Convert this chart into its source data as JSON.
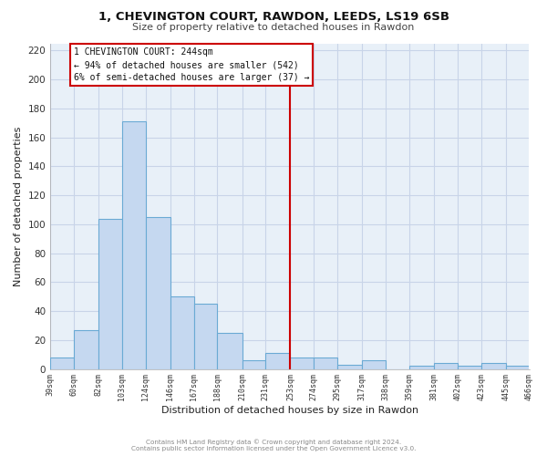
{
  "title": "1, CHEVINGTON COURT, RAWDON, LEEDS, LS19 6SB",
  "subtitle": "Size of property relative to detached houses in Rawdon",
  "xlabel": "Distribution of detached houses by size in Rawdon",
  "ylabel": "Number of detached properties",
  "bar_color": "#c5d8f0",
  "bar_edge_color": "#6aaad4",
  "axes_bg_color": "#e8f0f8",
  "vline_x": 253,
  "vline_color": "#cc0000",
  "bin_edges": [
    39,
    60,
    82,
    103,
    124,
    146,
    167,
    188,
    210,
    231,
    253,
    274,
    295,
    317,
    338,
    359,
    381,
    402,
    423,
    445,
    466
  ],
  "counts": [
    8,
    27,
    104,
    171,
    105,
    50,
    45,
    25,
    6,
    11,
    8,
    8,
    3,
    6,
    0,
    2,
    4,
    2,
    4,
    2
  ],
  "ylim": [
    0,
    225
  ],
  "yticks": [
    0,
    20,
    40,
    60,
    80,
    100,
    120,
    140,
    160,
    180,
    200,
    220
  ],
  "footer_line1": "Contains HM Land Registry data © Crown copyright and database right 2024.",
  "footer_line2": "Contains public sector information licensed under the Open Government Licence v3.0.",
  "background_color": "#ffffff",
  "grid_color": "#c8d4e8"
}
